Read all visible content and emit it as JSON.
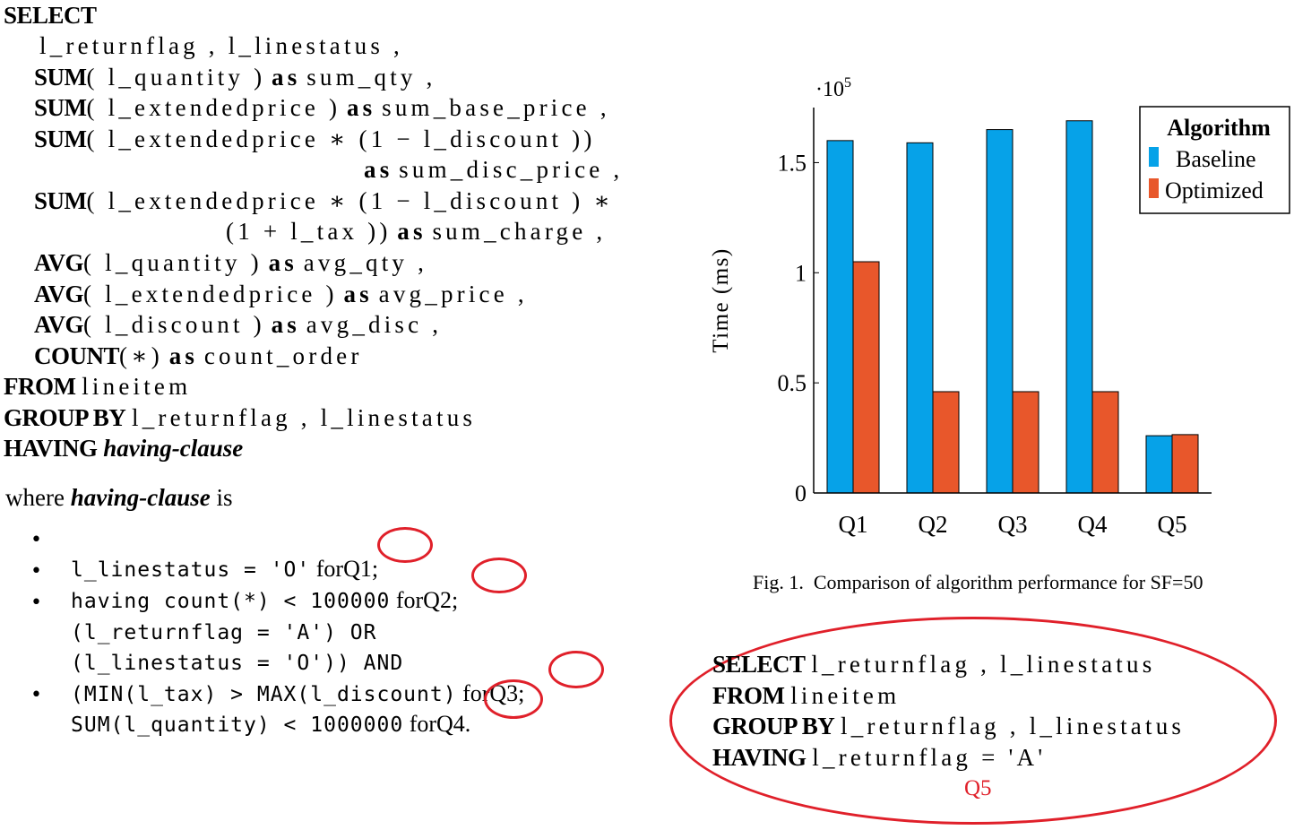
{
  "sql_query": {
    "l1_kw": "SELECT",
    "l2": "l_returnflag , l_linestatus ,",
    "l3_kw": "SUM",
    "l3": "( l_quantity )",
    "l3_as": "as",
    "l3_alias": "sum_qty ,",
    "l4_kw": "SUM",
    "l4": "( l_extendedprice )",
    "l4_as": "as",
    "l4_alias": "sum_base_price ,",
    "l5_kw": "SUM",
    "l5": "( l_extendedprice ∗ (1 − l_discount ))",
    "l6_as": "as",
    "l6_alias": "sum_disc_price ,",
    "l7_kw": "SUM",
    "l7": "( l_extendedprice ∗ (1 − l_discount ) ∗",
    "l8": "(1 + l_tax ))",
    "l8_as": "as",
    "l8_alias": "sum_charge ,",
    "l9_kw": "AVG",
    "l9": "( l_quantity )",
    "l9_as": "as",
    "l9_alias": "avg_qty ,",
    "l10_kw": "AVG",
    "l10": "( l_extendedprice )",
    "l10_as": "as",
    "l10_alias": "avg_price ,",
    "l11_kw": "AVG",
    "l11": "( l_discount )",
    "l11_as": "as",
    "l11_alias": "avg_disc ,",
    "l12_kw": "COUNT",
    "l12": "(∗)",
    "l12_as": "as",
    "l12_alias": "count_order",
    "l13_kw": "FROM",
    "l13": "lineitem",
    "l14_kw": "GROUP BY",
    "l14": "l_returnflag , l_linestatus",
    "l15_kw": "HAVING",
    "l15_it": "having-clause"
  },
  "where_text": {
    "prefix": "where",
    "term": "having-clause",
    "suffix": "is"
  },
  "bullets": [
    {
      "code": "l_linestatus = 'O'",
      "for": "for",
      "q": "Q1;"
    },
    {
      "code": "having count(*) < 100000",
      "for": "for",
      "q": "Q2;"
    },
    {
      "code_a": "(l_returnflag = 'A') OR",
      "code_b": "(l_linestatus = 'O')) AND",
      "code_c": "(MIN(l_tax) > MAX(l_discount)",
      "for": "for",
      "q": "Q3;"
    },
    {
      "code": "SUM(l_quantity) < 1000000",
      "for": "for",
      "q": "Q4."
    }
  ],
  "chart_data": {
    "type": "bar",
    "categories": [
      "Q1",
      "Q2",
      "Q3",
      "Q4",
      "Q5"
    ],
    "series": [
      {
        "name": "Baseline",
        "values": [
          1.6,
          1.59,
          1.65,
          1.69,
          0.26
        ],
        "color": "#06a2e8"
      },
      {
        "name": "Optimized",
        "values": [
          1.05,
          0.46,
          0.46,
          0.46,
          0.265
        ],
        "color": "#e8572b"
      }
    ],
    "ylabel": "Time (ms)",
    "y_scale_note": "·10",
    "y_scale_exp": "5",
    "ylim": [
      0,
      1.75
    ],
    "yticks": [
      0,
      0.5,
      1,
      1.5
    ],
    "ytick_labels": [
      "0",
      "0.5",
      "1",
      "1.5"
    ],
    "legend_title": "Algorithm",
    "legend_position": "top-right",
    "grid": false
  },
  "caption": "Fig. 1.  Comparison of algorithm performance for SF=50",
  "q5_query": {
    "l1_kw": "SELECT",
    "l1": "l_returnflag , l_linestatus",
    "l2_kw": "FROM",
    "l2": "lineitem",
    "l3_kw": "GROUP BY",
    "l3": "l_returnflag , l_linestatus",
    "l4_kw": "HAVING",
    "l4": "l_returnflag = 'A'",
    "label": "Q5"
  },
  "accent_color": "#e0202a"
}
